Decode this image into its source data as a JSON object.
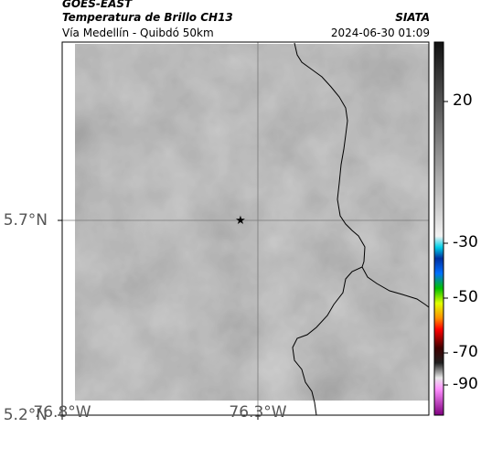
{
  "header": {
    "satellite": "GOES-EAST",
    "product": "Temperatura de Brillo CH13",
    "region": "Vía Medellín - Quibdó 50km",
    "agency": "SIATA",
    "datetime": "2024-06-30 01:09"
  },
  "axes": {
    "y_ticks": [
      "5.7°N",
      "5.2°N"
    ],
    "x_ticks": [
      "76.8°W",
      "76.3°W"
    ]
  },
  "colorbar": {
    "ticks": [
      "20",
      "-30",
      "-50",
      "-70",
      "-90"
    ],
    "stops": [
      "#101010",
      "#d8d8d8",
      "#ffffff",
      "#00c8e6",
      "#002080",
      "#0060ff",
      "#00c000",
      "#ffff00",
      "#ff8000",
      "#ff0000",
      "#200000",
      "#e0e0e0",
      "#ff80ff",
      "#800080"
    ]
  },
  "marker": {
    "icon": "star-icon",
    "color": "#000000"
  },
  "colors": {
    "background": "#8e8e8e",
    "border_line": "#000000",
    "grid": "#7a7a7a"
  }
}
